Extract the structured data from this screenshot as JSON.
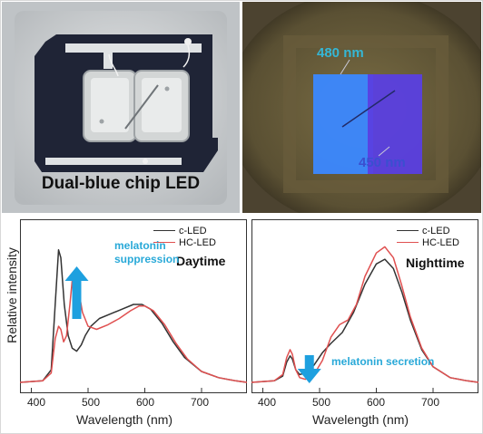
{
  "chip_photo": {
    "caption": "Dual-blue chip LED",
    "colors": {
      "background": "#bfc3c6",
      "board": "#1f2436",
      "pad": "#d3d6d6"
    }
  },
  "emission_photo": {
    "label_480": "480 nm",
    "label_450": "450 nm",
    "colors": {
      "background": "#4c4330",
      "chip_480": "#3b88ff",
      "chip_450": "#5a3fe0"
    }
  },
  "y_axis_label": "Relative intensity",
  "chart_data": [
    {
      "type": "line",
      "title": "Daytime",
      "xlabel": "Wavelength (nm)",
      "ylabel": "Relative intensity",
      "xlim": [
        380,
        780
      ],
      "xticks": [
        "400",
        "500",
        "600",
        "700"
      ],
      "series": [
        {
          "name": "c-LED",
          "color": "#333333",
          "x": [
            380,
            420,
            435,
            442,
            448,
            452,
            458,
            465,
            472,
            480,
            488,
            495,
            505,
            520,
            540,
            560,
            580,
            595,
            610,
            630,
            650,
            670,
            700,
            730,
            760,
            780
          ],
          "y": [
            0,
            0.01,
            0.08,
            0.5,
            0.85,
            0.8,
            0.5,
            0.3,
            0.22,
            0.2,
            0.24,
            0.3,
            0.36,
            0.41,
            0.44,
            0.47,
            0.5,
            0.5,
            0.47,
            0.38,
            0.26,
            0.16,
            0.07,
            0.03,
            0.01,
            0
          ]
        },
        {
          "name": "HC-LED",
          "color": "#e05050",
          "x": [
            380,
            420,
            435,
            442,
            448,
            452,
            457,
            462,
            468,
            473,
            478,
            483,
            490,
            500,
            515,
            535,
            555,
            575,
            590,
            600,
            615,
            635,
            655,
            675,
            700,
            730,
            760,
            780
          ],
          "y": [
            0,
            0.01,
            0.06,
            0.28,
            0.36,
            0.34,
            0.26,
            0.3,
            0.5,
            0.69,
            0.72,
            0.6,
            0.45,
            0.36,
            0.34,
            0.37,
            0.41,
            0.46,
            0.49,
            0.49,
            0.46,
            0.37,
            0.25,
            0.15,
            0.07,
            0.03,
            0.01,
            0
          ]
        }
      ],
      "annotation": "melatonin suppression"
    },
    {
      "type": "line",
      "title": "Nighttime",
      "xlabel": "Wavelength (nm)",
      "xlim": [
        380,
        780
      ],
      "xticks": [
        "400",
        "500",
        "600",
        "700"
      ],
      "series": [
        {
          "name": "c-LED",
          "color": "#333333",
          "x": [
            380,
            420,
            435,
            442,
            448,
            452,
            458,
            465,
            475,
            490,
            505,
            520,
            540,
            560,
            580,
            600,
            615,
            630,
            645,
            660,
            680,
            700,
            730,
            760,
            780
          ],
          "y": [
            0,
            0.01,
            0.04,
            0.13,
            0.17,
            0.15,
            0.08,
            0.05,
            0.06,
            0.11,
            0.19,
            0.25,
            0.32,
            0.45,
            0.63,
            0.76,
            0.79,
            0.73,
            0.58,
            0.4,
            0.21,
            0.1,
            0.03,
            0.01,
            0
          ]
        },
        {
          "name": "HC-LED",
          "color": "#e05050",
          "x": [
            380,
            420,
            435,
            442,
            448,
            452,
            458,
            465,
            475,
            490,
            505,
            520,
            535,
            550,
            565,
            580,
            600,
            615,
            630,
            645,
            660,
            680,
            700,
            730,
            760,
            780
          ],
          "y": [
            0,
            0.01,
            0.05,
            0.16,
            0.21,
            0.18,
            0.08,
            0.03,
            0.02,
            0.05,
            0.14,
            0.29,
            0.37,
            0.4,
            0.5,
            0.68,
            0.83,
            0.87,
            0.8,
            0.62,
            0.42,
            0.22,
            0.1,
            0.03,
            0.01,
            0
          ]
        }
      ],
      "annotation": "melatonin secretion"
    }
  ]
}
